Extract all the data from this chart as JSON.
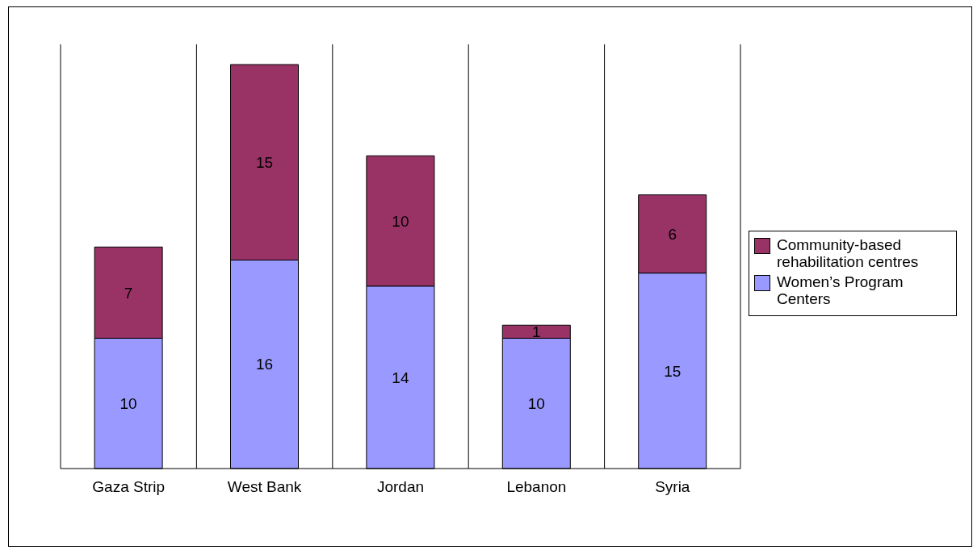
{
  "chart_data": {
    "type": "bar",
    "stacked": true,
    "categories": [
      "Gaza Strip",
      "West Bank",
      "Jordan",
      "Lebanon",
      "Syria"
    ],
    "series": [
      {
        "name": "Women’s Program Centers",
        "color": "#9999ff",
        "values": [
          10,
          16,
          14,
          10,
          15
        ]
      },
      {
        "name": "Community-based rehabilitation centres",
        "color": "#993366",
        "values": [
          7,
          15,
          10,
          1,
          6
        ]
      }
    ],
    "data_labels": true,
    "grid": "x",
    "legend": "right"
  }
}
